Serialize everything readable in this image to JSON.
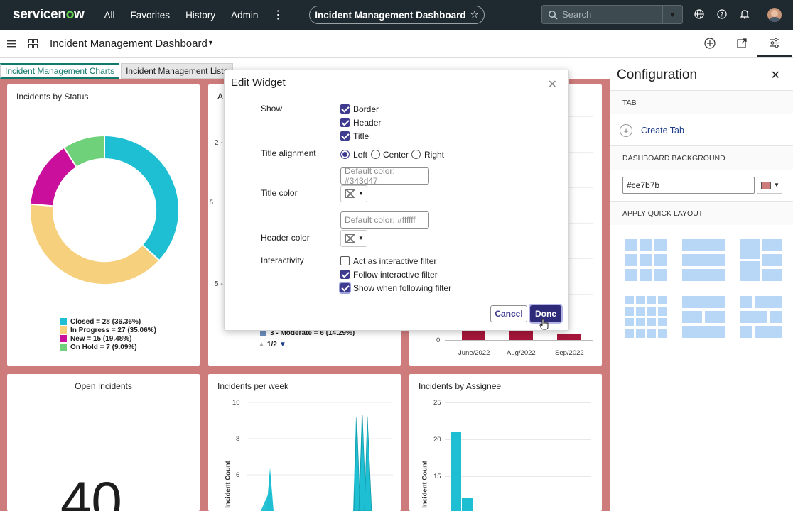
{
  "topnav": {
    "logo_text": "servicenow",
    "menu": [
      "All",
      "Favorites",
      "History",
      "Admin"
    ],
    "more_icon": "more-vertical-icon",
    "dashboard_pill": "Incident Management Dashboard",
    "search_placeholder": "Search",
    "icons": [
      "globe-icon",
      "help-icon",
      "bell-icon",
      "user-avatar"
    ]
  },
  "subbar": {
    "title": "Incident Management Dashboard",
    "icons": [
      "hamburger-icon",
      "grid-icon",
      "add-icon",
      "share-icon",
      "settings-sliders-icon"
    ]
  },
  "tabs": [
    "Incident Management Charts",
    "Incident Management Lists"
  ],
  "canvas_color": "#ce7b7b",
  "widgets": {
    "status": {
      "title": "Incidents by Status",
      "legend": [
        {
          "label": "Closed = 28 (36.36%)",
          "color": "#1ebfd2"
        },
        {
          "label": "In Progress = 27 (35.06%)",
          "color": "#f6d07c"
        },
        {
          "label": "New = 15 (19.48%)",
          "color": "#c90f9b"
        },
        {
          "label": "On Hold = 7 (9.09%)",
          "color": "#6fd27a"
        }
      ]
    },
    "priority": {
      "title_fragment": "A",
      "ticks": [
        "2 -",
        "5 -"
      ],
      "side_label": "5",
      "legend_item": "3 - Moderate = 6 (14.29%)",
      "pager": "1/2"
    },
    "monthly": {
      "zero": "0",
      "x_labels": [
        "June/2022",
        "Aug/2022",
        "Sep/2022"
      ]
    },
    "open": {
      "title": "Open Incidents",
      "value": "40"
    },
    "perweek": {
      "title": "Incidents per week",
      "y_ticks": [
        "10",
        "8",
        "6"
      ],
      "y_label": "Incident Count"
    },
    "assignee": {
      "title": "Incidents by Assignee",
      "y_ticks": [
        "25",
        "20",
        "15"
      ],
      "y_label": "Incident Count"
    }
  },
  "modal": {
    "title": "Edit Widget",
    "show_label": "Show",
    "show_options": [
      {
        "label": "Border",
        "checked": true
      },
      {
        "label": "Header",
        "checked": true
      },
      {
        "label": "Title",
        "checked": true
      }
    ],
    "title_alignment_label": "Title alignment",
    "alignment_options": [
      {
        "label": "Left",
        "selected": true
      },
      {
        "label": "Center",
        "selected": false
      },
      {
        "label": "Right",
        "selected": false
      }
    ],
    "title_color_label": "Title color",
    "title_color_placeholder": "Default color: #343d47",
    "header_color_label": "Header color",
    "header_color_placeholder": "Default color: #ffffff",
    "interactivity_label": "Interactivity",
    "interactivity_options": [
      {
        "label": "Act as interactive filter",
        "checked": false
      },
      {
        "label": "Follow interactive filter",
        "checked": true
      },
      {
        "label": "Show when following filter",
        "checked": true
      }
    ],
    "cancel_label": "Cancel",
    "done_label": "Done"
  },
  "config": {
    "title": "Configuration",
    "tab_section": "TAB",
    "create_tab": "Create Tab",
    "background_section": "DASHBOARD BACKGROUND",
    "background_value": "#ce7b7b",
    "quick_layout_section": "APPLY QUICK LAYOUT"
  }
}
